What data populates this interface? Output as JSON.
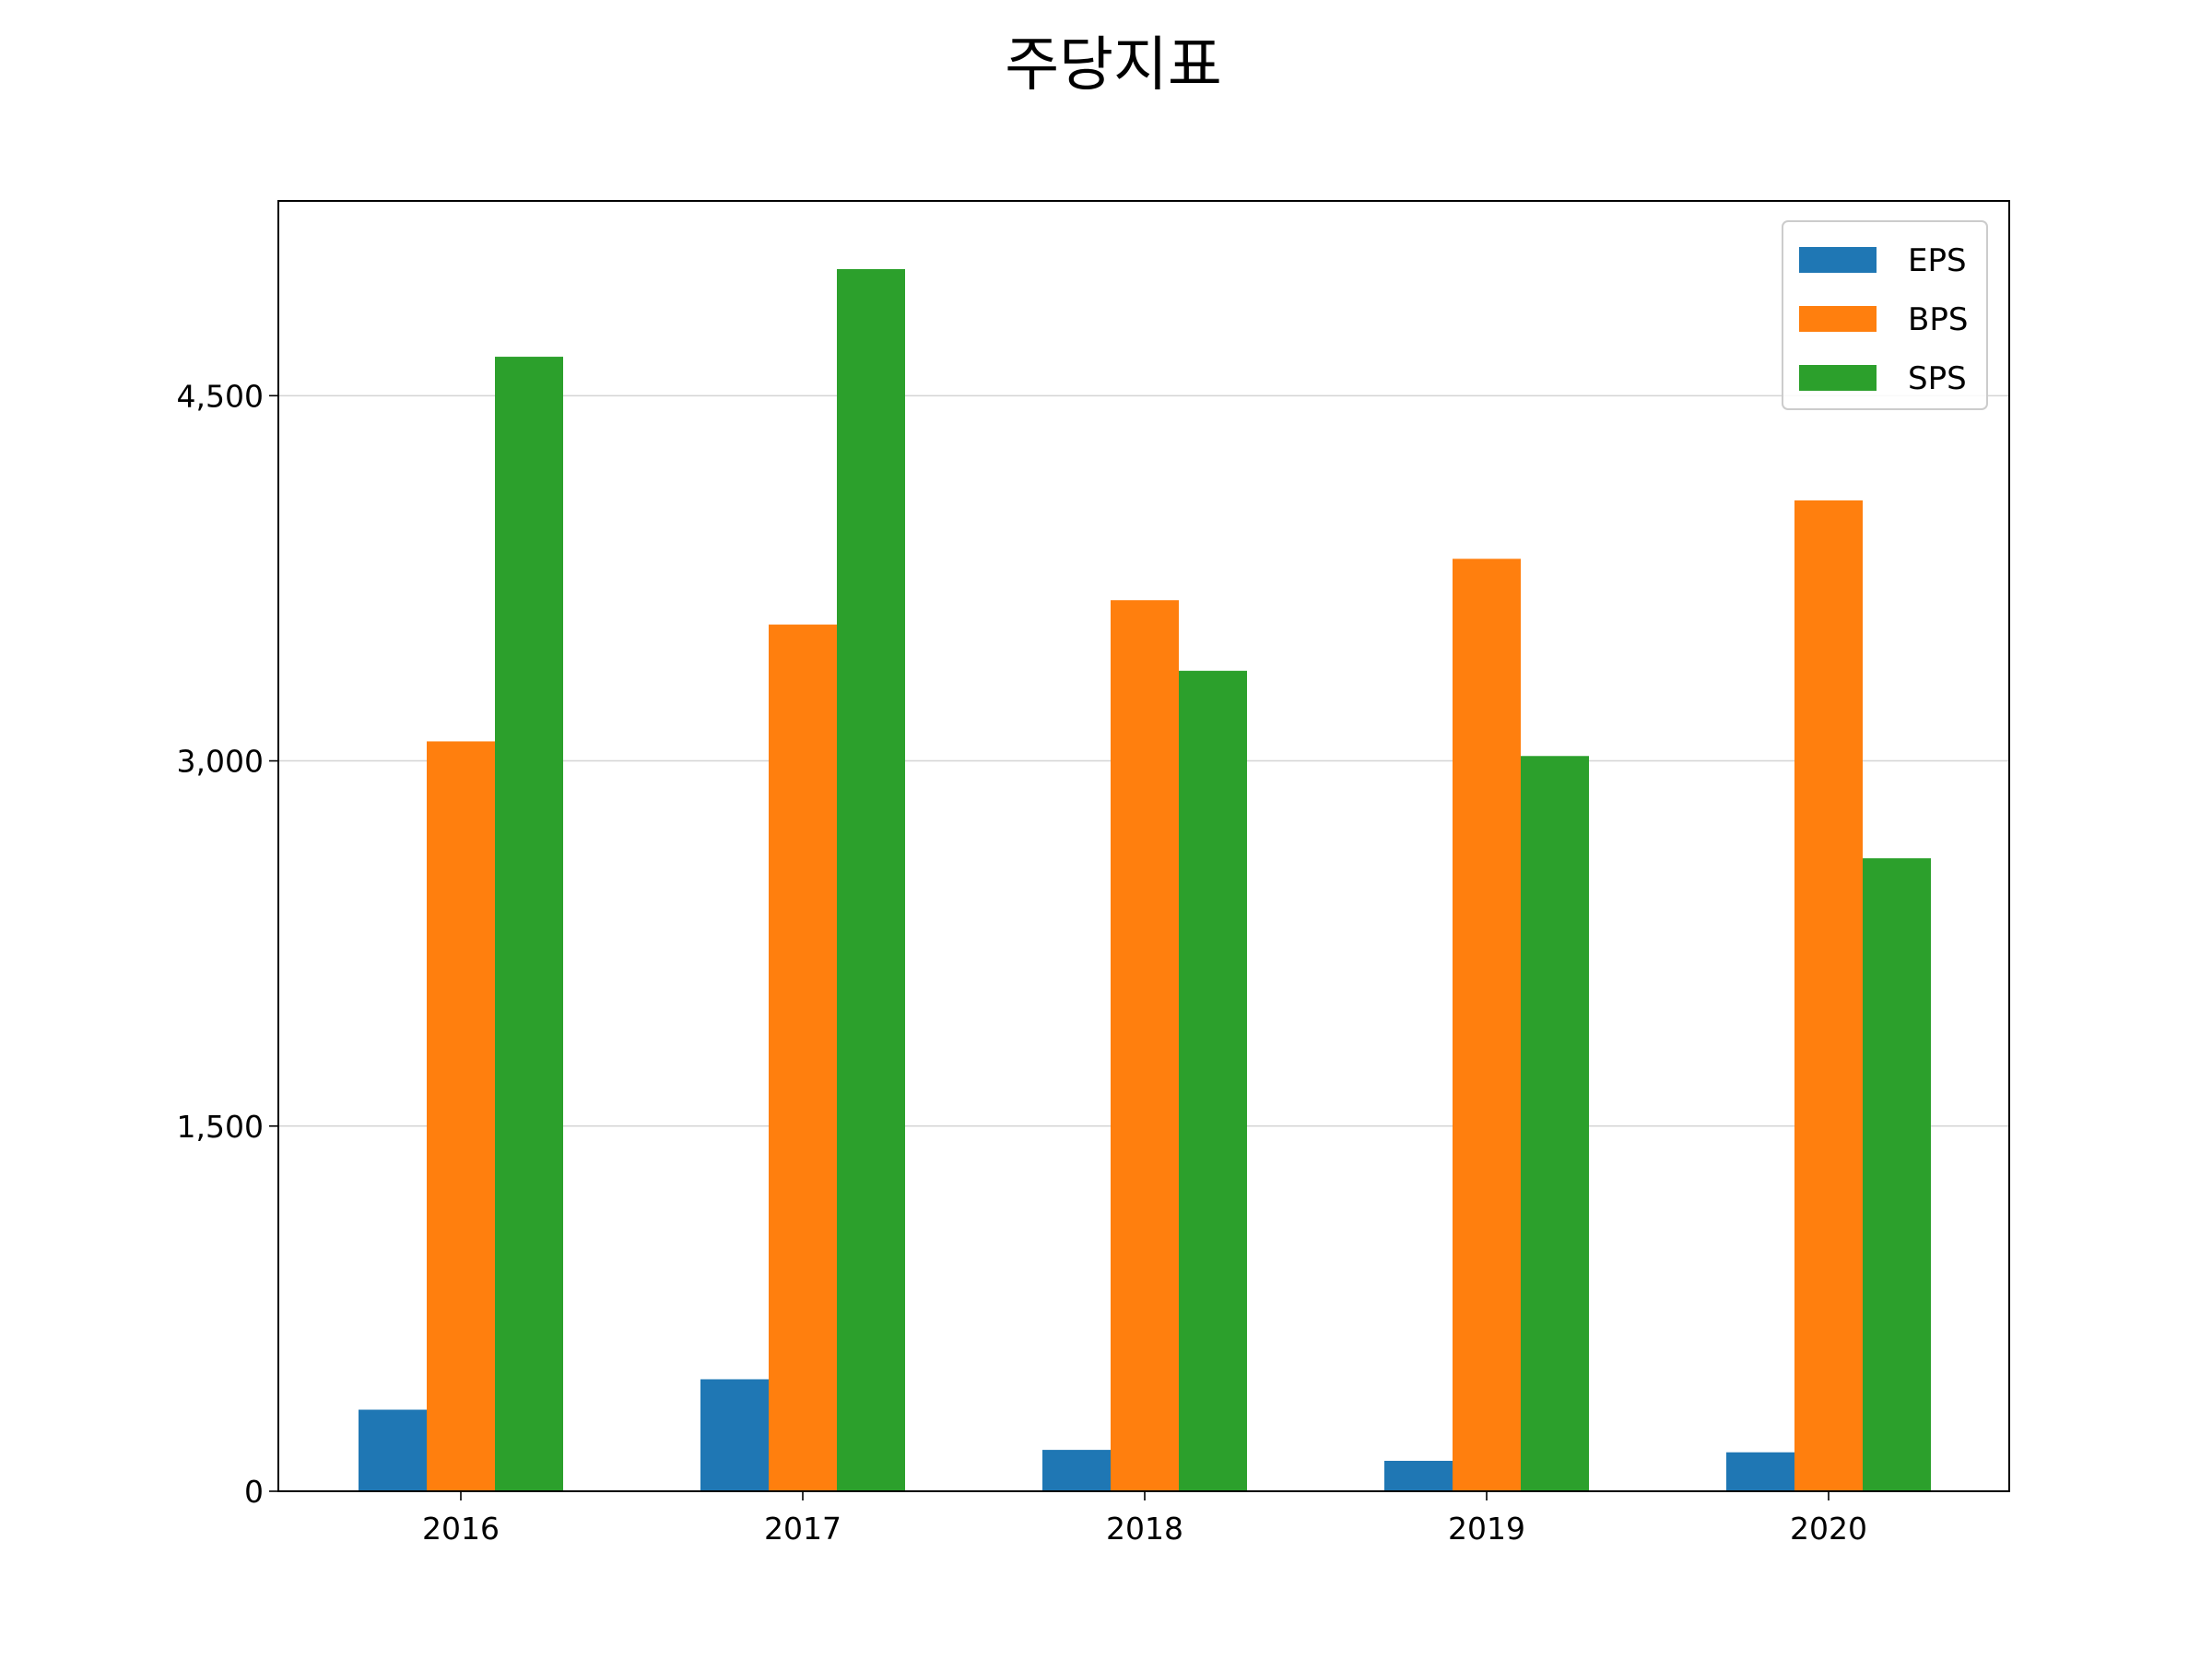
{
  "chart_data": {
    "type": "bar",
    "title": "주당지표",
    "xlabel": "",
    "ylabel": "",
    "categories": [
      "2016",
      "2017",
      "2018",
      "2019",
      "2020"
    ],
    "series": [
      {
        "name": "EPS",
        "color": "#1f77b4",
        "values": [
          335,
          460,
          170,
          125,
          160
        ]
      },
      {
        "name": "BPS",
        "color": "#ff7f0e",
        "values": [
          3080,
          3560,
          3660,
          3830,
          4070
        ]
      },
      {
        "name": "SPS",
        "color": "#2ca02c",
        "values": [
          4660,
          5020,
          3370,
          3020,
          2600
        ]
      }
    ],
    "ylim": [
      0,
      5300
    ],
    "yticks": [
      0,
      1500,
      3000,
      4500
    ],
    "ytick_labels": [
      "0",
      "1,500",
      "3,000",
      "4,500"
    ],
    "grid": "y",
    "legend_position": "top-right"
  }
}
